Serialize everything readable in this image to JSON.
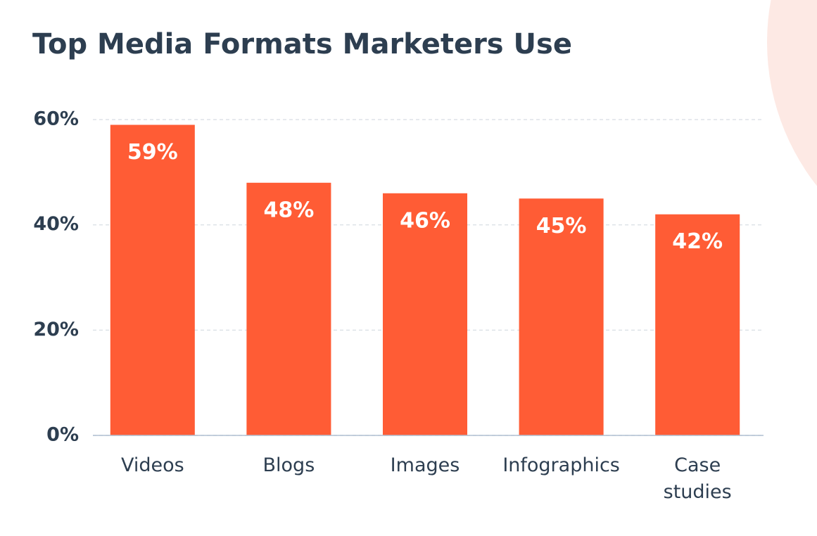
{
  "chart_data": {
    "type": "bar",
    "title": "Top Media Formats Marketers Use",
    "categories": [
      "Videos",
      "Blogs",
      "Images",
      "Infographics",
      "Case studies"
    ],
    "values": [
      59,
      48,
      46,
      45,
      42
    ],
    "value_labels": [
      "59%",
      "48%",
      "46%",
      "45%",
      "42%"
    ],
    "color": "#ff5c35",
    "ylim": [
      0,
      60
    ],
    "yticks": [
      {
        "value": 0,
        "label": "0%"
      },
      {
        "value": 20,
        "label": "20%"
      },
      {
        "value": 40,
        "label": "40%"
      },
      {
        "value": 60,
        "label": "60%"
      }
    ],
    "grid": true
  }
}
